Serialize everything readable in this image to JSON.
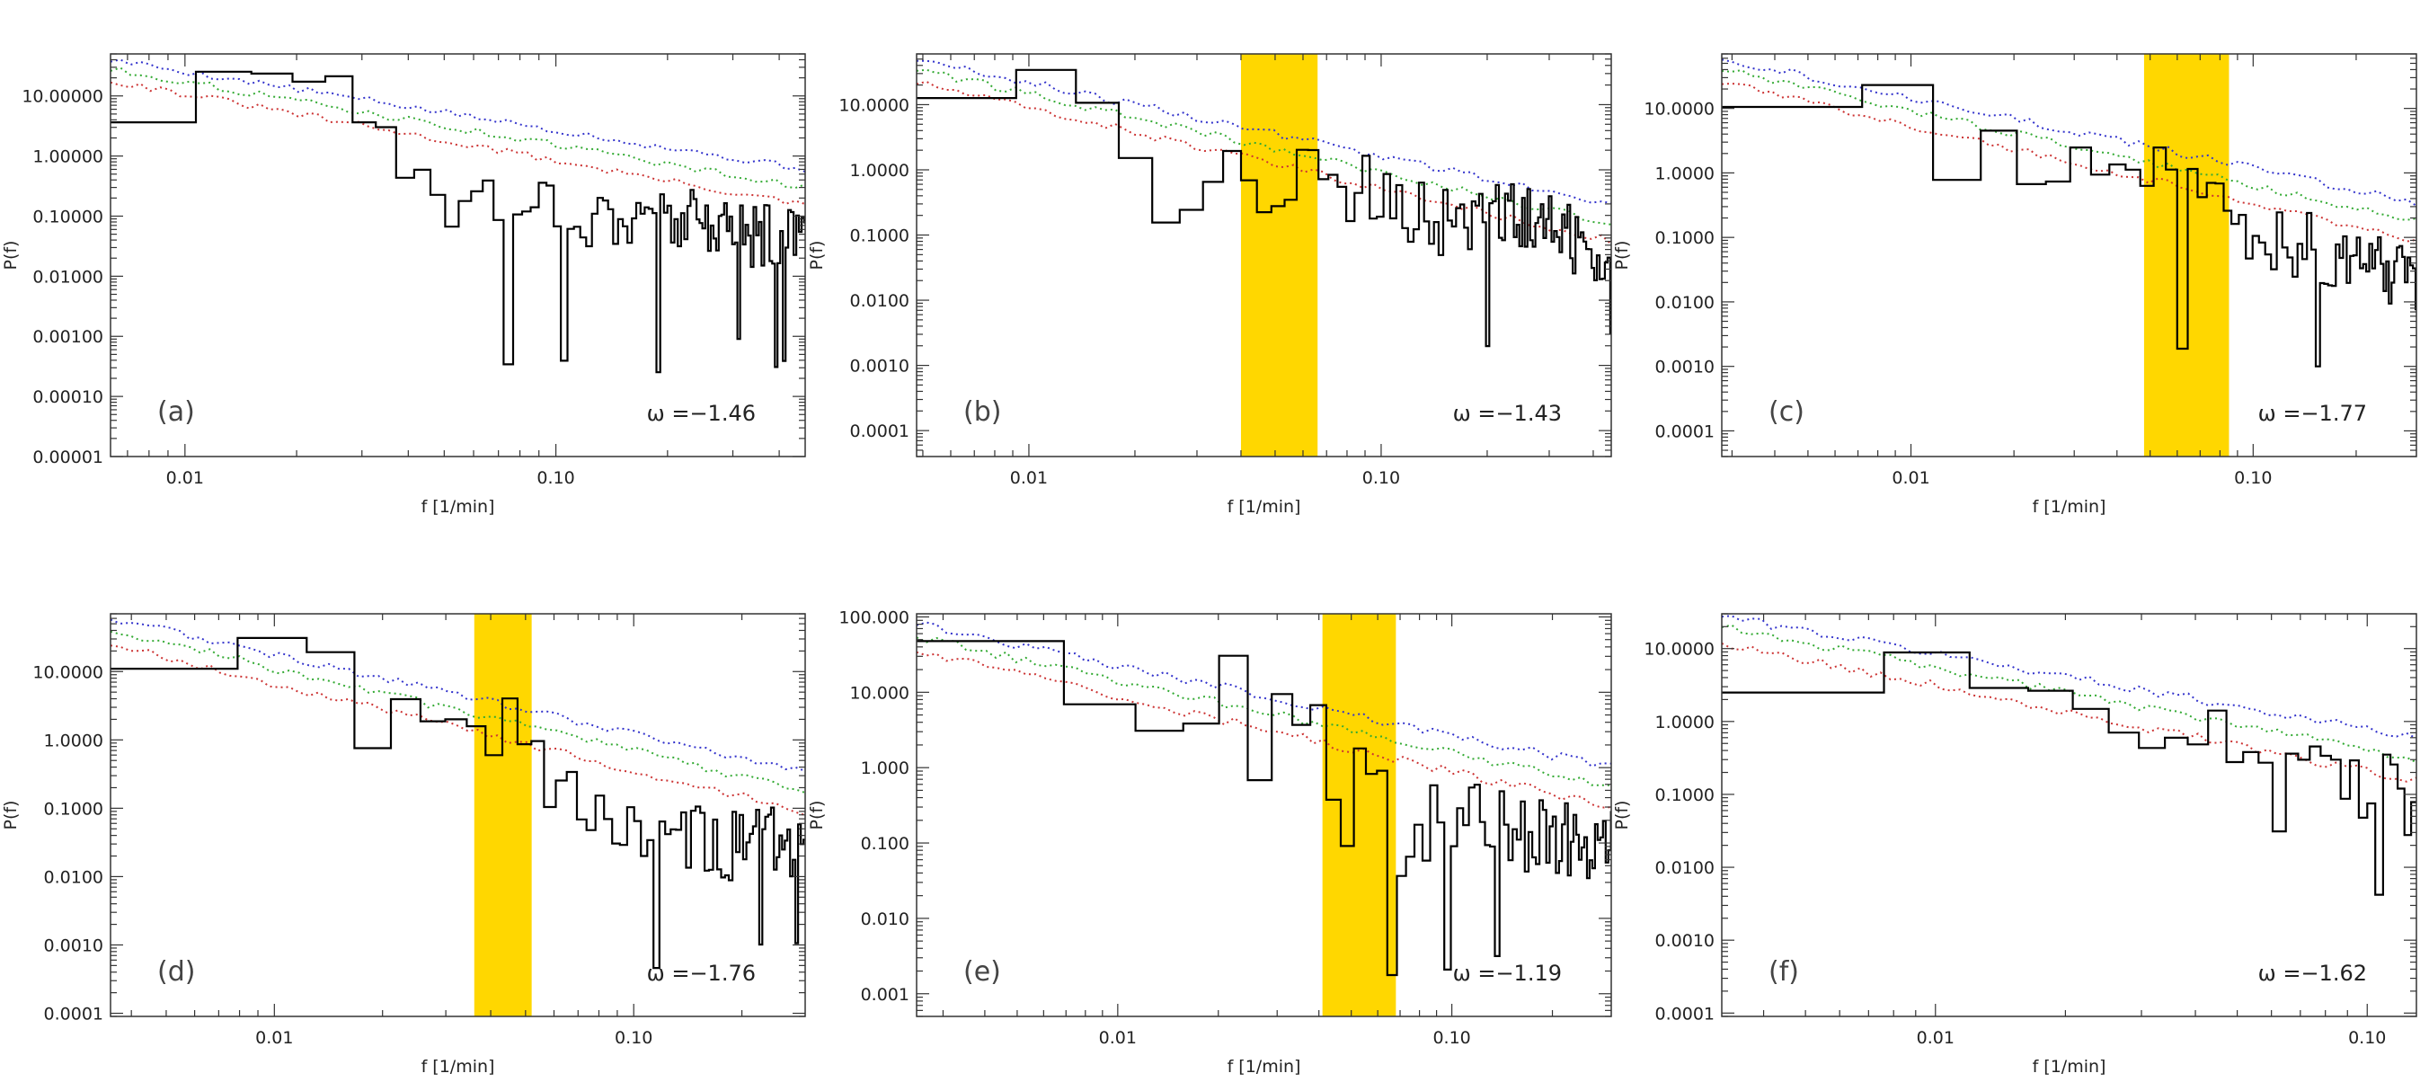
{
  "figure": {
    "colors": {
      "spectrum": "#000000",
      "band": "#FFD700",
      "conf_blue": "#3333cc",
      "conf_green": "#33aa33",
      "conf_red": "#cc3333",
      "axes": "#333333"
    }
  },
  "chart_data": [
    {
      "type": "line",
      "id": "a",
      "panel_label": "(a)",
      "omega_text": "ω =−1.46",
      "xlabel": "f [1/min]",
      "ylabel": "P(f)",
      "xscale": "log",
      "yscale": "log",
      "xlim": [
        0.0063,
        0.47
      ],
      "ylim": [
        1e-05,
        50
      ],
      "xticks": [
        0.01,
        0.1
      ],
      "xtick_labels": [
        "0.01",
        "0.10"
      ],
      "yticks": [
        1e-05,
        0.0001,
        0.001,
        0.01,
        0.1,
        1,
        10
      ],
      "ytick_labels": [
        "0.00001",
        "0.00010",
        "0.00100",
        "0.01000",
        "0.10000",
        "1.00000",
        "10.00000"
      ],
      "band": null,
      "spectrum_anchors": [
        [
          0.0063,
          4.5
        ],
        [
          0.0085,
          15
        ],
        [
          0.012,
          22
        ],
        [
          0.016,
          25
        ],
        [
          0.022,
          18
        ],
        [
          0.028,
          6
        ],
        [
          0.035,
          1.2
        ],
        [
          0.05,
          0.2
        ],
        [
          0.08,
          0.25
        ],
        [
          0.12,
          0.1
        ],
        [
          0.2,
          0.1
        ],
        [
          0.3,
          0.05
        ],
        [
          0.47,
          0.05
        ]
      ],
      "spectrum_floor": [
        0.001,
        0.0002
      ],
      "conf_blue": [
        [
          0.0063,
          40
        ],
        [
          0.47,
          0.6
        ]
      ],
      "conf_green": [
        [
          0.0063,
          28
        ],
        [
          0.47,
          0.3
        ]
      ],
      "conf_red": [
        [
          0.0063,
          18
        ],
        [
          0.47,
          0.15
        ]
      ]
    },
    {
      "type": "line",
      "id": "b",
      "panel_label": "(b)",
      "omega_text": "ω =−1.43",
      "xlabel": "f [1/min]",
      "ylabel": "P(f)",
      "xscale": "log",
      "yscale": "log",
      "xlim": [
        0.0048,
        0.45
      ],
      "ylim": [
        4e-05,
        60
      ],
      "xticks": [
        0.01,
        0.1
      ],
      "xtick_labels": [
        "0.01",
        "0.10"
      ],
      "yticks": [
        0.0001,
        0.001,
        0.01,
        0.1,
        1,
        10
      ],
      "ytick_labels": [
        "0.0001",
        "0.0010",
        "0.0100",
        "0.1000",
        "1.0000",
        "10.0000"
      ],
      "band": [
        0.04,
        0.066
      ],
      "spectrum_anchors": [
        [
          0.0048,
          15
        ],
        [
          0.008,
          28
        ],
        [
          0.011,
          30
        ],
        [
          0.016,
          8
        ],
        [
          0.02,
          0.6
        ],
        [
          0.028,
          0.4
        ],
        [
          0.034,
          5
        ],
        [
          0.042,
          1.5
        ],
        [
          0.05,
          0.1
        ],
        [
          0.058,
          2
        ],
        [
          0.066,
          0.3
        ],
        [
          0.09,
          0.5
        ],
        [
          0.15,
          0.15
        ],
        [
          0.25,
          0.2
        ],
        [
          0.45,
          0.05
        ]
      ],
      "spectrum_floor": [
        0.004,
        0.0006
      ],
      "conf_blue": [
        [
          0.0048,
          50
        ],
        [
          0.45,
          0.3
        ]
      ],
      "conf_green": [
        [
          0.0048,
          35
        ],
        [
          0.45,
          0.15
        ]
      ],
      "conf_red": [
        [
          0.0048,
          22
        ],
        [
          0.45,
          0.08
        ]
      ]
    },
    {
      "type": "line",
      "id": "c",
      "panel_label": "(c)",
      "omega_text": "ω =−1.77",
      "xlabel": "f [1/min]",
      "ylabel": "P(f)",
      "xscale": "log",
      "yscale": "log",
      "xlim": [
        0.0028,
        0.3
      ],
      "ylim": [
        4e-05,
        70
      ],
      "xticks": [
        0.01,
        0.1
      ],
      "xtick_labels": [
        "0.01",
        "0.10"
      ],
      "yticks": [
        0.0001,
        0.001,
        0.01,
        0.1,
        1,
        10
      ],
      "ytick_labels": [
        "0.0001",
        "0.0010",
        "0.0100",
        "0.1000",
        "1.0000",
        "10.0000"
      ],
      "band": [
        0.048,
        0.085
      ],
      "spectrum_anchors": [
        [
          0.0028,
          12
        ],
        [
          0.0035,
          35
        ],
        [
          0.004,
          45
        ],
        [
          0.006,
          40
        ],
        [
          0.008,
          15
        ],
        [
          0.01,
          3
        ],
        [
          0.012,
          0.4
        ],
        [
          0.016,
          3
        ],
        [
          0.02,
          1
        ],
        [
          0.03,
          2
        ],
        [
          0.04,
          1.5
        ],
        [
          0.05,
          1.5
        ],
        [
          0.06,
          1.2
        ],
        [
          0.075,
          0.6
        ],
        [
          0.085,
          0.3
        ],
        [
          0.1,
          0.1
        ],
        [
          0.2,
          0.05
        ],
        [
          0.3,
          0.02
        ]
      ],
      "spectrum_floor": [
        0.003,
        0.0006
      ],
      "conf_blue": [
        [
          0.0028,
          60
        ],
        [
          0.3,
          0.35
        ]
      ],
      "conf_green": [
        [
          0.0028,
          40
        ],
        [
          0.3,
          0.18
        ]
      ],
      "conf_red": [
        [
          0.0028,
          25
        ],
        [
          0.3,
          0.09
        ]
      ]
    },
    {
      "type": "line",
      "id": "d",
      "panel_label": "(d)",
      "omega_text": "ω =−1.76",
      "xlabel": "f [1/min]",
      "ylabel": "P(f)",
      "xscale": "log",
      "yscale": "log",
      "xlim": [
        0.0035,
        0.3
      ],
      "ylim": [
        9e-05,
        70
      ],
      "xticks": [
        0.01,
        0.1
      ],
      "xtick_labels": [
        "0.01",
        "0.10"
      ],
      "yticks": [
        0.0001,
        0.001,
        0.01,
        0.1,
        1,
        10
      ],
      "ytick_labels": [
        "0.0001",
        "0.0010",
        "0.0100",
        "0.1000",
        "1.0000",
        "10.0000"
      ],
      "band": [
        0.036,
        0.052
      ],
      "spectrum_anchors": [
        [
          0.0035,
          12
        ],
        [
          0.005,
          28
        ],
        [
          0.007,
          40
        ],
        [
          0.009,
          25
        ],
        [
          0.012,
          20
        ],
        [
          0.014,
          12
        ],
        [
          0.016,
          0.4
        ],
        [
          0.02,
          2.5
        ],
        [
          0.025,
          4
        ],
        [
          0.03,
          6
        ],
        [
          0.034,
          3
        ],
        [
          0.04,
          1.5
        ],
        [
          0.05,
          2.5
        ],
        [
          0.055,
          0.1
        ],
        [
          0.07,
          0.15
        ],
        [
          0.1,
          0.03
        ],
        [
          0.2,
          0.03
        ],
        [
          0.3,
          0.03
        ]
      ],
      "spectrum_floor": [
        0.0012,
        0.0008
      ],
      "conf_blue": [
        [
          0.0035,
          60
        ],
        [
          0.3,
          0.35
        ]
      ],
      "conf_green": [
        [
          0.0035,
          40
        ],
        [
          0.3,
          0.18
        ]
      ],
      "conf_red": [
        [
          0.0035,
          25
        ],
        [
          0.3,
          0.09
        ]
      ]
    },
    {
      "type": "line",
      "id": "e",
      "panel_label": "(e)",
      "omega_text": "ω =−1.19",
      "xlabel": "f [1/min]",
      "ylabel": "P(f)",
      "xscale": "log",
      "yscale": "log",
      "xlim": [
        0.0025,
        0.3
      ],
      "ylim": [
        0.0005,
        110
      ],
      "xticks": [
        0.01,
        0.1
      ],
      "xtick_labels": [
        "0.01",
        "0.10"
      ],
      "yticks": [
        0.001,
        0.01,
        0.1,
        1,
        10,
        100
      ],
      "ytick_labels": [
        "0.001",
        "0.010",
        "0.100",
        "1.000",
        "10.000",
        "100.000"
      ],
      "band": [
        0.041,
        0.068
      ],
      "spectrum_anchors": [
        [
          0.0025,
          50
        ],
        [
          0.004,
          60
        ],
        [
          0.005,
          40
        ],
        [
          0.006,
          12
        ],
        [
          0.008,
          5
        ],
        [
          0.01,
          2
        ],
        [
          0.013,
          8
        ],
        [
          0.016,
          3
        ],
        [
          0.02,
          15
        ],
        [
          0.022,
          0.006
        ],
        [
          0.025,
          5
        ],
        [
          0.03,
          10
        ],
        [
          0.04,
          3
        ],
        [
          0.045,
          0.1
        ],
        [
          0.05,
          2
        ],
        [
          0.06,
          0.3
        ],
        [
          0.07,
          0.1
        ],
        [
          0.1,
          0.3
        ],
        [
          0.2,
          0.1
        ],
        [
          0.3,
          0.1
        ]
      ],
      "spectrum_floor": [
        0.007,
        0.004
      ],
      "conf_blue": [
        [
          0.0025,
          80
        ],
        [
          0.3,
          1
        ]
      ],
      "conf_green": [
        [
          0.0025,
          55
        ],
        [
          0.3,
          0.55
        ]
      ],
      "conf_red": [
        [
          0.0025,
          35
        ],
        [
          0.3,
          0.3
        ]
      ]
    },
    {
      "type": "line",
      "id": "f",
      "panel_label": "(f)",
      "omega_text": "ω =−1.62",
      "xlabel": "f [1/min]",
      "ylabel": "P(f)",
      "xscale": "log",
      "yscale": "log",
      "xlim": [
        0.0032,
        0.13
      ],
      "ylim": [
        9e-05,
        30
      ],
      "xticks": [
        0.01,
        0.1
      ],
      "xtick_labels": [
        "0.01",
        "0.10"
      ],
      "yticks": [
        0.0001,
        0.001,
        0.01,
        0.1,
        1,
        10
      ],
      "ytick_labels": [
        "0.0001",
        "0.0010",
        "0.0100",
        "0.1000",
        "1.0000",
        "10.0000"
      ],
      "band": null,
      "spectrum_anchors": [
        [
          0.0032,
          2.5
        ],
        [
          0.004,
          5
        ],
        [
          0.005,
          12
        ],
        [
          0.0065,
          15
        ],
        [
          0.008,
          10
        ],
        [
          0.01,
          5
        ],
        [
          0.012,
          2
        ],
        [
          0.016,
          2.5
        ],
        [
          0.02,
          3
        ],
        [
          0.03,
          1.5
        ],
        [
          0.04,
          0.6
        ],
        [
          0.045,
          1.1
        ],
        [
          0.05,
          0.6
        ],
        [
          0.06,
          0.1
        ],
        [
          0.08,
          0.2
        ],
        [
          0.1,
          0.15
        ],
        [
          0.13,
          0.08
        ]
      ],
      "spectrum_floor": [
        0.008,
        0.0009
      ],
      "conf_blue": [
        [
          0.0032,
          28
        ],
        [
          0.13,
          0.6
        ]
      ],
      "conf_green": [
        [
          0.0032,
          20
        ],
        [
          0.13,
          0.3
        ]
      ],
      "conf_red": [
        [
          0.0032,
          12
        ],
        [
          0.13,
          0.15
        ]
      ]
    }
  ]
}
